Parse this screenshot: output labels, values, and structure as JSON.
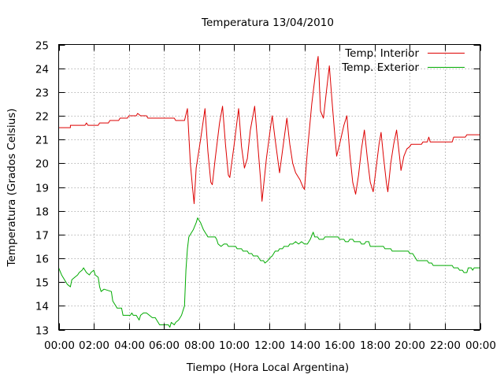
{
  "chart_data": {
    "type": "line",
    "title": "Temperatura 13/04/2010",
    "xlabel": "Tiempo (Hora Local Argentina)",
    "ylabel": "Temperatura (Grados Celsius)",
    "xlim": [
      "00:00",
      "24:00"
    ],
    "ylim": [
      13,
      25
    ],
    "grid": true,
    "legend_position": "top-right",
    "x_ticks": [
      "00:00",
      "02:00",
      "04:00",
      "06:00",
      "08:00",
      "10:00",
      "12:00",
      "14:00",
      "16:00",
      "18:00",
      "20:00",
      "22:00",
      "00:00"
    ],
    "y_ticks": [
      "13",
      "14",
      "15",
      "16",
      "17",
      "18",
      "19",
      "20",
      "21",
      "22",
      "23",
      "24",
      "25"
    ],
    "series": [
      {
        "name": "Temp. Interior",
        "color": "#dd0000",
        "points": [
          [
            "00:00",
            21.5
          ],
          [
            "00:40",
            21.5
          ],
          [
            "00:40",
            21.6
          ],
          [
            "01:30",
            21.6
          ],
          [
            "01:35",
            21.7
          ],
          [
            "01:40",
            21.6
          ],
          [
            "02:15",
            21.6
          ],
          [
            "02:20",
            21.7
          ],
          [
            "02:50",
            21.7
          ],
          [
            "02:55",
            21.8
          ],
          [
            "03:25",
            21.8
          ],
          [
            "03:30",
            21.9
          ],
          [
            "03:55",
            21.9
          ],
          [
            "04:00",
            22.0
          ],
          [
            "04:25",
            22.0
          ],
          [
            "04:30",
            22.1
          ],
          [
            "04:40",
            22.0
          ],
          [
            "05:00",
            22.0
          ],
          [
            "05:05",
            21.9
          ],
          [
            "06:35",
            21.9
          ],
          [
            "06:40",
            21.8
          ],
          [
            "07:10",
            21.8
          ],
          [
            "07:20",
            22.3
          ],
          [
            "07:30",
            20.0
          ],
          [
            "07:38",
            18.9
          ],
          [
            "07:43",
            18.3
          ],
          [
            "07:50",
            19.8
          ],
          [
            "08:05",
            21.0
          ],
          [
            "08:20",
            22.3
          ],
          [
            "08:30",
            20.5
          ],
          [
            "08:40",
            19.2
          ],
          [
            "08:45",
            19.1
          ],
          [
            "08:55",
            20.2
          ],
          [
            "09:10",
            21.7
          ],
          [
            "09:20",
            22.4
          ],
          [
            "09:30",
            20.8
          ],
          [
            "09:40",
            19.5
          ],
          [
            "09:45",
            19.4
          ],
          [
            "10:00",
            20.8
          ],
          [
            "10:10",
            21.8
          ],
          [
            "10:15",
            22.3
          ],
          [
            "10:25",
            20.7
          ],
          [
            "10:35",
            19.8
          ],
          [
            "10:45",
            20.2
          ],
          [
            "10:55",
            21.4
          ],
          [
            "11:10",
            22.4
          ],
          [
            "11:20",
            20.9
          ],
          [
            "11:30",
            19.3
          ],
          [
            "11:35",
            18.4
          ],
          [
            "11:50",
            20.2
          ],
          [
            "12:05",
            21.6
          ],
          [
            "12:10",
            22.0
          ],
          [
            "12:20",
            21.0
          ],
          [
            "12:35",
            19.6
          ],
          [
            "12:50",
            21.0
          ],
          [
            "13:00",
            21.9
          ],
          [
            "13:10",
            20.8
          ],
          [
            "13:20",
            20.0
          ],
          [
            "13:30",
            19.6
          ],
          [
            "13:45",
            19.3
          ],
          [
            "13:55",
            19.0
          ],
          [
            "14:00",
            18.9
          ],
          [
            "14:10",
            20.5
          ],
          [
            "14:25",
            22.5
          ],
          [
            "14:40",
            24.0
          ],
          [
            "14:47",
            24.5
          ],
          [
            "14:55",
            22.2
          ],
          [
            "15:05",
            21.9
          ],
          [
            "15:15",
            23.0
          ],
          [
            "15:25",
            24.1
          ],
          [
            "15:35",
            22.5
          ],
          [
            "15:45",
            21.0
          ],
          [
            "15:50",
            20.3
          ],
          [
            "16:00",
            20.8
          ],
          [
            "16:15",
            21.6
          ],
          [
            "16:25",
            22.0
          ],
          [
            "16:35",
            20.4
          ],
          [
            "16:45",
            19.2
          ],
          [
            "16:55",
            18.7
          ],
          [
            "17:05",
            19.5
          ],
          [
            "17:15",
            20.6
          ],
          [
            "17:25",
            21.4
          ],
          [
            "17:35",
            20.2
          ],
          [
            "17:45",
            19.2
          ],
          [
            "17:55",
            18.8
          ],
          [
            "18:05",
            19.8
          ],
          [
            "18:15",
            20.8
          ],
          [
            "18:22",
            21.3
          ],
          [
            "18:30",
            20.3
          ],
          [
            "18:40",
            19.2
          ],
          [
            "18:45",
            18.8
          ],
          [
            "18:55",
            20.0
          ],
          [
            "19:05",
            20.8
          ],
          [
            "19:15",
            21.4
          ],
          [
            "19:25",
            20.3
          ],
          [
            "19:30",
            19.7
          ],
          [
            "19:40",
            20.3
          ],
          [
            "19:50",
            20.6
          ],
          [
            "20:00",
            20.7
          ],
          [
            "20:05",
            20.8
          ],
          [
            "20:40",
            20.8
          ],
          [
            "20:45",
            20.9
          ],
          [
            "21:00",
            20.9
          ],
          [
            "21:05",
            21.1
          ],
          [
            "21:10",
            20.9
          ],
          [
            "22:25",
            20.9
          ],
          [
            "22:30",
            21.1
          ],
          [
            "23:10",
            21.1
          ],
          [
            "23:15",
            21.2
          ],
          [
            "24:00",
            21.2
          ]
        ]
      },
      {
        "name": "Temp. Exterior",
        "color": "#00aa00",
        "points": [
          [
            "00:00",
            15.6
          ],
          [
            "00:10",
            15.3
          ],
          [
            "00:20",
            15.1
          ],
          [
            "00:30",
            14.9
          ],
          [
            "00:40",
            14.8
          ],
          [
            "00:45",
            15.1
          ],
          [
            "00:55",
            15.2
          ],
          [
            "01:05",
            15.3
          ],
          [
            "01:10",
            15.4
          ],
          [
            "01:20",
            15.5
          ],
          [
            "01:25",
            15.6
          ],
          [
            "01:35",
            15.4
          ],
          [
            "01:45",
            15.3
          ],
          [
            "01:50",
            15.4
          ],
          [
            "02:00",
            15.5
          ],
          [
            "02:05",
            15.3
          ],
          [
            "02:15",
            15.2
          ],
          [
            "02:20",
            14.8
          ],
          [
            "02:25",
            14.6
          ],
          [
            "02:35",
            14.7
          ],
          [
            "03:00",
            14.6
          ],
          [
            "03:05",
            14.2
          ],
          [
            "03:15",
            14.0
          ],
          [
            "03:20",
            13.9
          ],
          [
            "03:35",
            13.9
          ],
          [
            "03:40",
            13.6
          ],
          [
            "04:05",
            13.6
          ],
          [
            "04:10",
            13.7
          ],
          [
            "04:15",
            13.6
          ],
          [
            "04:25",
            13.6
          ],
          [
            "04:35",
            13.4
          ],
          [
            "04:40",
            13.6
          ],
          [
            "04:50",
            13.7
          ],
          [
            "05:00",
            13.7
          ],
          [
            "05:10",
            13.6
          ],
          [
            "05:20",
            13.5
          ],
          [
            "05:30",
            13.5
          ],
          [
            "05:40",
            13.3
          ],
          [
            "05:45",
            13.2
          ],
          [
            "06:15",
            13.2
          ],
          [
            "06:20",
            13.1
          ],
          [
            "06:25",
            13.3
          ],
          [
            "06:35",
            13.2
          ],
          [
            "06:40",
            13.3
          ],
          [
            "06:50",
            13.4
          ],
          [
            "07:00",
            13.6
          ],
          [
            "07:10",
            14.0
          ],
          [
            "07:15",
            15.5
          ],
          [
            "07:20",
            16.4
          ],
          [
            "07:25",
            16.9
          ],
          [
            "07:30",
            17.0
          ],
          [
            "07:40",
            17.2
          ],
          [
            "07:50",
            17.5
          ],
          [
            "07:55",
            17.7
          ],
          [
            "08:05",
            17.5
          ],
          [
            "08:15",
            17.2
          ],
          [
            "08:25",
            17.0
          ],
          [
            "08:30",
            16.9
          ],
          [
            "08:55",
            16.9
          ],
          [
            "09:00",
            16.8
          ],
          [
            "09:05",
            16.6
          ],
          [
            "09:15",
            16.5
          ],
          [
            "09:25",
            16.6
          ],
          [
            "09:35",
            16.6
          ],
          [
            "09:40",
            16.5
          ],
          [
            "10:05",
            16.5
          ],
          [
            "10:10",
            16.4
          ],
          [
            "10:25",
            16.4
          ],
          [
            "10:30",
            16.3
          ],
          [
            "10:45",
            16.3
          ],
          [
            "10:50",
            16.2
          ],
          [
            "11:00",
            16.2
          ],
          [
            "11:05",
            16.1
          ],
          [
            "11:20",
            16.1
          ],
          [
            "11:25",
            16.0
          ],
          [
            "11:30",
            15.9
          ],
          [
            "11:40",
            15.9
          ],
          [
            "11:45",
            15.8
          ],
          [
            "11:55",
            15.9
          ],
          [
            "12:00",
            16.0
          ],
          [
            "12:10",
            16.1
          ],
          [
            "12:20",
            16.3
          ],
          [
            "12:30",
            16.3
          ],
          [
            "12:35",
            16.4
          ],
          [
            "12:45",
            16.4
          ],
          [
            "12:50",
            16.5
          ],
          [
            "13:05",
            16.5
          ],
          [
            "13:10",
            16.6
          ],
          [
            "13:20",
            16.6
          ],
          [
            "13:30",
            16.7
          ],
          [
            "13:40",
            16.6
          ],
          [
            "13:50",
            16.7
          ],
          [
            "14:00",
            16.6
          ],
          [
            "14:10",
            16.6
          ],
          [
            "14:20",
            16.8
          ],
          [
            "14:30",
            17.1
          ],
          [
            "14:35",
            16.9
          ],
          [
            "14:45",
            16.9
          ],
          [
            "14:50",
            16.8
          ],
          [
            "15:05",
            16.8
          ],
          [
            "15:10",
            16.9
          ],
          [
            "15:55",
            16.9
          ],
          [
            "16:00",
            16.8
          ],
          [
            "16:15",
            16.8
          ],
          [
            "16:20",
            16.7
          ],
          [
            "16:30",
            16.7
          ],
          [
            "16:35",
            16.8
          ],
          [
            "16:45",
            16.8
          ],
          [
            "16:50",
            16.7
          ],
          [
            "17:10",
            16.7
          ],
          [
            "17:15",
            16.6
          ],
          [
            "17:25",
            16.6
          ],
          [
            "17:30",
            16.7
          ],
          [
            "17:40",
            16.7
          ],
          [
            "17:45",
            16.5
          ],
          [
            "18:30",
            16.5
          ],
          [
            "18:35",
            16.4
          ],
          [
            "18:55",
            16.4
          ],
          [
            "19:00",
            16.3
          ],
          [
            "19:55",
            16.3
          ],
          [
            "20:00",
            16.2
          ],
          [
            "20:10",
            16.2
          ],
          [
            "20:15",
            16.1
          ],
          [
            "20:20",
            16.0
          ],
          [
            "20:25",
            15.9
          ],
          [
            "21:00",
            15.9
          ],
          [
            "21:05",
            15.8
          ],
          [
            "21:15",
            15.8
          ],
          [
            "21:20",
            15.7
          ],
          [
            "22:25",
            15.7
          ],
          [
            "22:30",
            15.6
          ],
          [
            "22:45",
            15.6
          ],
          [
            "22:50",
            15.5
          ],
          [
            "23:00",
            15.5
          ],
          [
            "23:05",
            15.4
          ],
          [
            "23:15",
            15.4
          ],
          [
            "23:20",
            15.6
          ],
          [
            "23:30",
            15.6
          ],
          [
            "23:35",
            15.5
          ],
          [
            "23:40",
            15.6
          ],
          [
            "24:00",
            15.6
          ]
        ]
      }
    ]
  }
}
